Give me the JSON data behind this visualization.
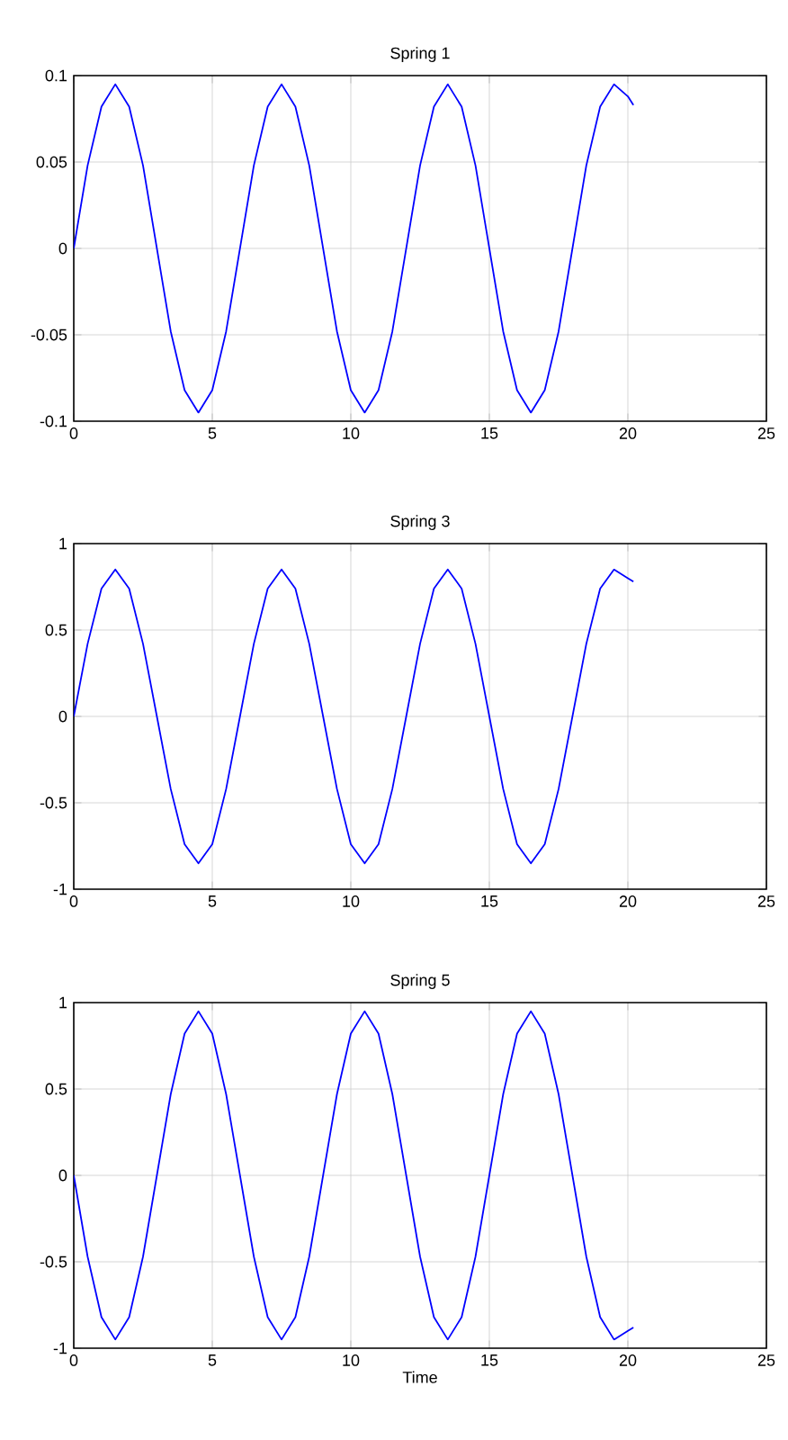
{
  "chart_data": [
    {
      "type": "line",
      "title": "Spring 1",
      "xlim": [
        0,
        25
      ],
      "xticks": [
        0,
        5,
        10,
        15,
        20,
        25
      ],
      "ylim": [
        -0.1,
        0.1
      ],
      "yticks": [
        -0.1,
        -0.05,
        0,
        0.05,
        0.1
      ],
      "grid": true,
      "x": [
        0,
        0.5,
        1,
        1.5,
        2,
        2.5,
        3,
        3.5,
        4,
        4.5,
        5,
        5.5,
        6,
        6.5,
        7,
        7.5,
        8,
        8.5,
        9,
        9.5,
        10,
        10.5,
        11,
        11.5,
        12,
        12.5,
        13,
        13.5,
        14,
        14.5,
        15,
        15.5,
        16,
        16.5,
        17,
        17.5,
        18,
        18.5,
        19,
        19.5,
        20,
        20.2
      ],
      "series": [
        {
          "color": "#0000ff",
          "values": [
            0,
            0.048,
            0.082,
            0.095,
            0.082,
            0.048,
            0,
            -0.048,
            -0.082,
            -0.095,
            -0.082,
            -0.048,
            0,
            0.048,
            0.082,
            0.095,
            0.082,
            0.048,
            0,
            -0.048,
            -0.082,
            -0.095,
            -0.082,
            -0.048,
            0,
            0.048,
            0.082,
            0.095,
            0.082,
            0.048,
            0,
            -0.048,
            -0.082,
            -0.095,
            -0.082,
            -0.048,
            0,
            0.048,
            0.082,
            0.095,
            0.088,
            0.083
          ]
        }
      ]
    },
    {
      "type": "line",
      "title": "Spring 3",
      "xlim": [
        0,
        25
      ],
      "xticks": [
        0,
        5,
        10,
        15,
        20,
        25
      ],
      "ylim": [
        -1,
        1
      ],
      "yticks": [
        -1,
        -0.5,
        0,
        0.5,
        1
      ],
      "grid": true,
      "x": [
        0,
        0.5,
        1,
        1.5,
        2,
        2.5,
        3,
        3.5,
        4,
        4.5,
        5,
        5.5,
        6,
        6.5,
        7,
        7.5,
        8,
        8.5,
        9,
        9.5,
        10,
        10.5,
        11,
        11.5,
        12,
        12.5,
        13,
        13.5,
        14,
        14.5,
        15,
        15.5,
        16,
        16.5,
        17,
        17.5,
        18,
        18.5,
        19,
        19.5,
        20,
        20.2
      ],
      "series": [
        {
          "color": "#0000ff",
          "values": [
            0,
            0.42,
            0.74,
            0.85,
            0.74,
            0.42,
            0,
            -0.42,
            -0.74,
            -0.85,
            -0.74,
            -0.42,
            0,
            0.42,
            0.74,
            0.85,
            0.74,
            0.42,
            0,
            -0.42,
            -0.74,
            -0.85,
            -0.74,
            -0.42,
            0,
            0.42,
            0.74,
            0.85,
            0.74,
            0.42,
            0,
            -0.42,
            -0.74,
            -0.85,
            -0.74,
            -0.42,
            0,
            0.42,
            0.74,
            0.85,
            0.8,
            0.78
          ]
        }
      ]
    },
    {
      "type": "line",
      "title": "Spring 5",
      "xlabel": "Time",
      "xlim": [
        0,
        25
      ],
      "xticks": [
        0,
        5,
        10,
        15,
        20,
        25
      ],
      "ylim": [
        -1,
        1
      ],
      "yticks": [
        -1,
        -0.5,
        0,
        0.5,
        1
      ],
      "grid": true,
      "x": [
        0,
        0.5,
        1,
        1.5,
        2,
        2.5,
        3,
        3.5,
        4,
        4.5,
        5,
        5.5,
        6,
        6.5,
        7,
        7.5,
        8,
        8.5,
        9,
        9.5,
        10,
        10.5,
        11,
        11.5,
        12,
        12.5,
        13,
        13.5,
        14,
        14.5,
        15,
        15.5,
        16,
        16.5,
        17,
        17.5,
        18,
        18.5,
        19,
        19.5,
        20,
        20.2
      ],
      "series": [
        {
          "color": "#0000ff",
          "values": [
            0,
            -0.47,
            -0.82,
            -0.95,
            -0.82,
            -0.47,
            0,
            0.47,
            0.82,
            0.95,
            0.82,
            0.47,
            0,
            -0.47,
            -0.82,
            -0.95,
            -0.82,
            -0.47,
            0,
            0.47,
            0.82,
            0.95,
            0.82,
            0.47,
            0,
            -0.47,
            -0.82,
            -0.95,
            -0.82,
            -0.47,
            0,
            0.47,
            0.82,
            0.95,
            0.82,
            0.47,
            0,
            -0.47,
            -0.82,
            -0.95,
            -0.9,
            -0.88
          ]
        }
      ]
    }
  ]
}
